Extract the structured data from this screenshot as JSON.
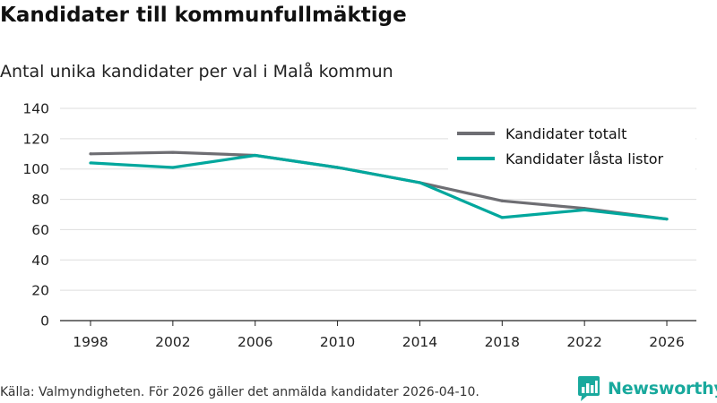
{
  "header": {
    "title": "Kandidater till kommunfullmäktige",
    "subtitle": "Antal unika kandidater per val i Malå kommun"
  },
  "footer": {
    "source": "Källa: Valmyndigheten. För 2026 gäller det anmälda kandidater 2026-04-10.",
    "brand": "Newsworthy",
    "brand_icon": "chat-bubble-bar-chart-icon"
  },
  "colors": {
    "totalt": "#6e6e73",
    "lasta": "#00a79d",
    "grid": "#dddddd",
    "axis": "#222222",
    "brand": "#19a99d"
  },
  "chart_data": {
    "type": "line",
    "title": "Kandidater till kommunfullmäktige",
    "subtitle": "Antal unika kandidater per val i Malå kommun",
    "xlabel": "",
    "ylabel": "",
    "categories": [
      "1998",
      "2002",
      "2006",
      "2010",
      "2014",
      "2018",
      "2022",
      "2026"
    ],
    "ylim": [
      0,
      140
    ],
    "yticks": [
      "0",
      "20",
      "40",
      "60",
      "80",
      "100",
      "120",
      "140"
    ],
    "grid": true,
    "legend_position": "top-right",
    "series": [
      {
        "name": "Kandidater totalt",
        "values": [
          110,
          111,
          109,
          101,
          91,
          79,
          74,
          67
        ]
      },
      {
        "name": "Kandidater låsta listor",
        "values": [
          104,
          101,
          109,
          101,
          91,
          68,
          73,
          67
        ]
      }
    ]
  }
}
